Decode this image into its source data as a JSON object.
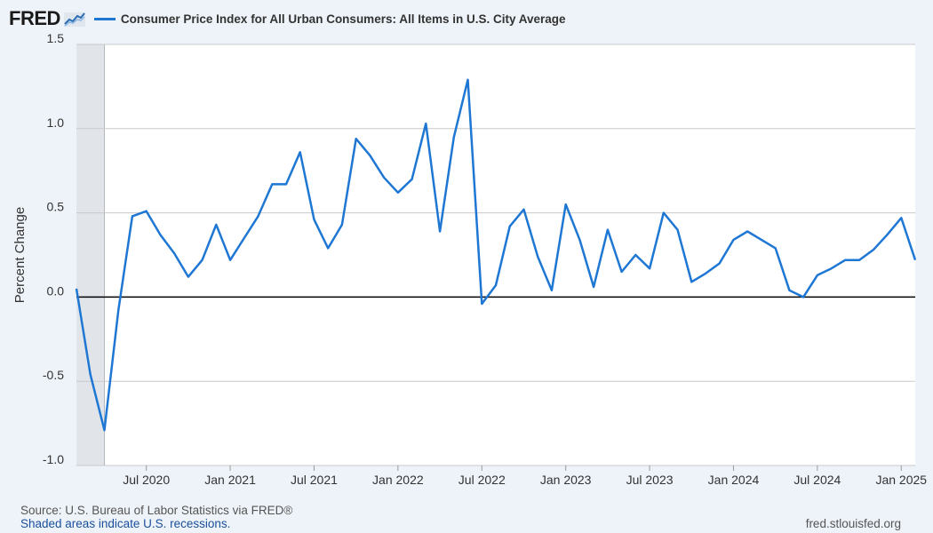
{
  "brand": {
    "logo_text": "FRED",
    "logo_icon": "trend-line-icon"
  },
  "legend": {
    "label": "Consumer Price Index for All Urban Consumers: All Items in U.S. City Average"
  },
  "colors": {
    "series": "#1f77d4",
    "recession_shade": "#e1e5ea",
    "grid": "#c9c9c9",
    "zero_line": "#000000",
    "background": "#eef3f9",
    "plot_background": "#ffffff"
  },
  "footer": {
    "source": "Source: U.S. Bureau of Labor Statistics via FRED®",
    "recession_note": "Shaded areas indicate U.S. recessions.",
    "site": "fred.stlouisfed.org"
  },
  "chart_data": {
    "type": "line",
    "ylabel": "Percent Change",
    "ylim": [
      -1.0,
      1.5
    ],
    "yticks": [
      "1.5",
      "1.0",
      "0.5",
      "0.0",
      "-0.5",
      "-1.0"
    ],
    "ytick_values": [
      1.5,
      1.0,
      0.5,
      0.0,
      -0.5,
      -1.0
    ],
    "grid": true,
    "x_range": [
      "2020-02",
      "2025-02"
    ],
    "xticks": [
      {
        "label": "Jul 2020",
        "date": "2020-07"
      },
      {
        "label": "Jan 2021",
        "date": "2021-01"
      },
      {
        "label": "Jul 2021",
        "date": "2021-07"
      },
      {
        "label": "Jan 2022",
        "date": "2022-01"
      },
      {
        "label": "Jul 2022",
        "date": "2022-07"
      },
      {
        "label": "Jan 2023",
        "date": "2023-01"
      },
      {
        "label": "Jul 2023",
        "date": "2023-07"
      },
      {
        "label": "Jan 2024",
        "date": "2024-01"
      },
      {
        "label": "Jul 2024",
        "date": "2024-07"
      },
      {
        "label": "Jan 2025",
        "date": "2025-01"
      }
    ],
    "recessions": [
      {
        "start": "2020-02",
        "end": "2020-04"
      }
    ],
    "series": [
      {
        "x": [
          "2020-02",
          "2020-03",
          "2020-04",
          "2020-05",
          "2020-06",
          "2020-07",
          "2020-08",
          "2020-09",
          "2020-10",
          "2020-11",
          "2020-12",
          "2021-01",
          "2021-02",
          "2021-03",
          "2021-04",
          "2021-05",
          "2021-06",
          "2021-07",
          "2021-08",
          "2021-09",
          "2021-10",
          "2021-11",
          "2021-12",
          "2022-01",
          "2022-02",
          "2022-03",
          "2022-04",
          "2022-05",
          "2022-06",
          "2022-07",
          "2022-08",
          "2022-09",
          "2022-10",
          "2022-11",
          "2022-12",
          "2023-01",
          "2023-02",
          "2023-03",
          "2023-04",
          "2023-05",
          "2023-06",
          "2023-07",
          "2023-08",
          "2023-09",
          "2023-10",
          "2023-11",
          "2023-12",
          "2024-01",
          "2024-02",
          "2024-03",
          "2024-04",
          "2024-05",
          "2024-06",
          "2024-07",
          "2024-08",
          "2024-09",
          "2024-10",
          "2024-11",
          "2024-12",
          "2025-01",
          "2025-02"
        ],
        "values": [
          0.05,
          -0.46,
          -0.79,
          -0.08,
          0.48,
          0.51,
          0.37,
          0.26,
          0.12,
          0.22,
          0.43,
          0.22,
          0.35,
          0.48,
          0.67,
          0.67,
          0.86,
          0.46,
          0.29,
          0.43,
          0.94,
          0.84,
          0.71,
          0.62,
          0.7,
          1.03,
          0.39,
          0.95,
          1.29,
          -0.04,
          0.07,
          0.42,
          0.52,
          0.24,
          0.04,
          0.55,
          0.34,
          0.06,
          0.4,
          0.15,
          0.25,
          0.17,
          0.5,
          0.4,
          0.09,
          0.14,
          0.2,
          0.34,
          0.39,
          0.34,
          0.29,
          0.04,
          0.0,
          0.13,
          0.17,
          0.22,
          0.22,
          0.28,
          0.37,
          0.47,
          0.22
        ]
      }
    ]
  }
}
